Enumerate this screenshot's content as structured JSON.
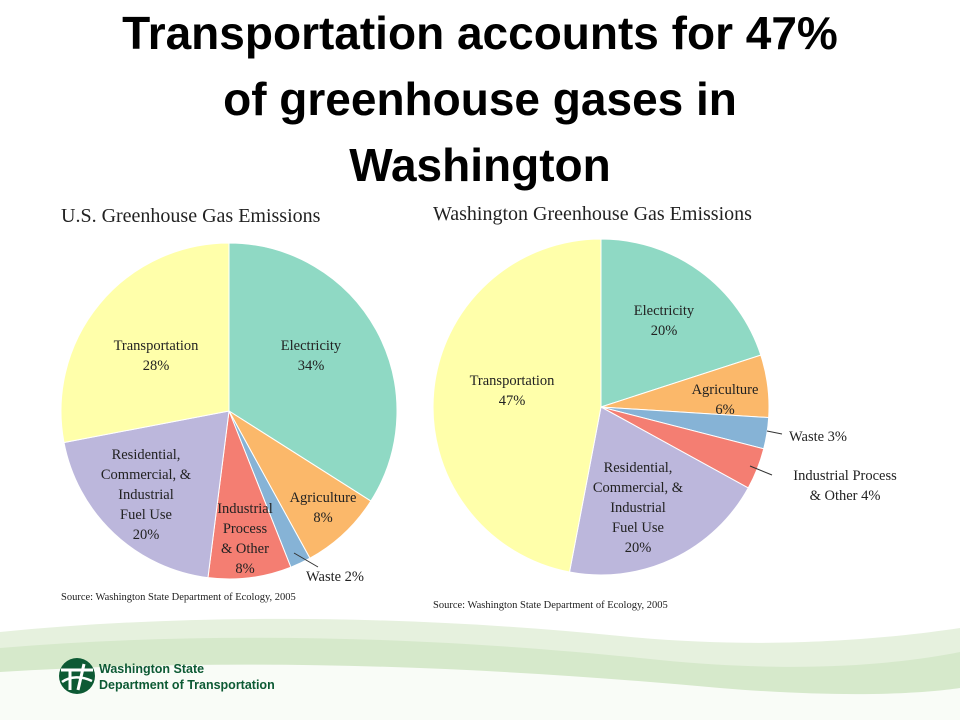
{
  "slide": {
    "title": "Transportation accounts for 47%\nof greenhouse gases in\nWashington"
  },
  "chart_data": [
    {
      "type": "pie",
      "title": "U.S. Greenhouse Gas Emissions",
      "source": "Source: Washington State Department of Ecology, 2005",
      "slices": [
        {
          "label": [
            "Electricity",
            "34%"
          ],
          "value": 34,
          "color": "#8fd9c4"
        },
        {
          "label": [
            "Agriculture",
            "8%"
          ],
          "value": 8,
          "color": "#fbb86a"
        },
        {
          "label": [
            "Waste 2%"
          ],
          "value": 2,
          "color": "#86b3d6"
        },
        {
          "label": [
            "Industrial",
            "Process",
            "& Other",
            "8%"
          ],
          "value": 8,
          "color": "#f47e72"
        },
        {
          "label": [
            "Residential,",
            "Commercial, &",
            "Industrial",
            "Fuel Use",
            "20%"
          ],
          "value": 20,
          "color": "#bcb7dc"
        },
        {
          "label": [
            "Transportation",
            "28%"
          ],
          "value": 28,
          "color": "#ffffaa"
        }
      ]
    },
    {
      "type": "pie",
      "title": "Washington Greenhouse Gas Emissions",
      "source": "Source: Washington State Department of Ecology, 2005",
      "slices": [
        {
          "label": [
            "Electricity",
            "20%"
          ],
          "value": 20,
          "color": "#8fd9c4"
        },
        {
          "label": [
            "Agriculture",
            "6%"
          ],
          "value": 6,
          "color": "#fbb86a"
        },
        {
          "label": [
            "Waste 3%"
          ],
          "value": 3,
          "color": "#86b3d6"
        },
        {
          "label": [
            "Industrial Process",
            "& Other 4%"
          ],
          "value": 4,
          "color": "#f47e72"
        },
        {
          "label": [
            "Residential,",
            "Commercial, &",
            "Industrial",
            "Fuel Use",
            "20%"
          ],
          "value": 20,
          "color": "#bcb7dc"
        },
        {
          "label": [
            "Transportation",
            "47%"
          ],
          "value": 47,
          "color": "#ffffaa"
        }
      ]
    }
  ],
  "footer": {
    "logo_text": [
      "Washington State",
      "Department of Transportation"
    ],
    "logo_icon": "wsdot-logo-icon",
    "colors": {
      "green": "#0d5a34",
      "wave_light": "#e6f1de",
      "wave_mid": "#cfe5c2"
    }
  }
}
